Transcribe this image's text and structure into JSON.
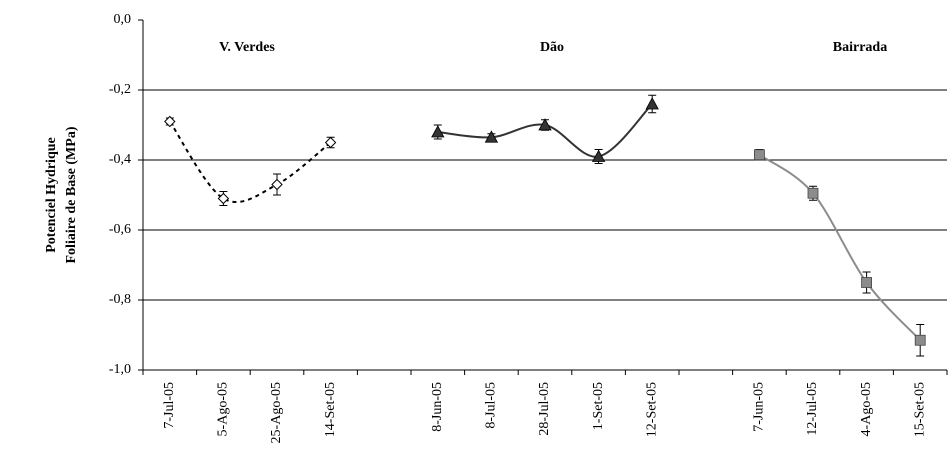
{
  "chart_data": {
    "type": "line",
    "y_label": [
      "Potenciel Hydrique",
      "Foliaire de Base (MPa)"
    ],
    "annotations": [
      "V. Verdes",
      "Dão",
      "Bairrada"
    ],
    "categories": [
      "7-Jul-05",
      "5-Ago-05",
      "25-Ago-05",
      "14-Set-05",
      null,
      "8-Jun-05",
      "8-Jul-05",
      "28-Jul-05",
      "1-Set-05",
      "12-Set-05",
      null,
      "7-Jun-05",
      "12-Jul-05",
      "4-Ago-05",
      "15-Set-05"
    ],
    "series": [
      {
        "name": "V. Verdes",
        "color": "#000000",
        "marker": "diamond",
        "dashed": true,
        "values": [
          -0.29,
          -0.51,
          -0.47,
          -0.35,
          null,
          null,
          null,
          null,
          null,
          null,
          null,
          null,
          null,
          null,
          null
        ],
        "errors": [
          0.01,
          0.02,
          0.03,
          0.015,
          null,
          null,
          null,
          null,
          null,
          null,
          null,
          null,
          null,
          null,
          null
        ]
      },
      {
        "name": "Dão",
        "color": "#333333",
        "marker": "triangle",
        "dashed": false,
        "values": [
          null,
          null,
          null,
          null,
          null,
          -0.32,
          -0.335,
          -0.3,
          -0.39,
          -0.24,
          null,
          null,
          null,
          null,
          null
        ],
        "errors": [
          null,
          null,
          null,
          null,
          null,
          0.02,
          0.01,
          0.015,
          0.02,
          0.025,
          null,
          null,
          null,
          null,
          null
        ]
      },
      {
        "name": "Bairrada",
        "color": "#8c8c8c",
        "marker": "square",
        "dashed": false,
        "values": [
          null,
          null,
          null,
          null,
          null,
          null,
          null,
          null,
          null,
          null,
          null,
          -0.385,
          -0.495,
          -0.75,
          -0.915
        ],
        "errors": [
          null,
          null,
          null,
          null,
          null,
          null,
          null,
          null,
          null,
          null,
          null,
          0.015,
          0.02,
          0.03,
          0.045
        ]
      }
    ],
    "ylim": [
      -1.0,
      0.0
    ],
    "yticks": [
      {
        "value": 0.0,
        "label": "0,0"
      },
      {
        "value": -0.2,
        "label": "-0,2"
      },
      {
        "value": -0.4,
        "label": "-0,4"
      },
      {
        "value": -0.6,
        "label": "-0,6"
      },
      {
        "value": -0.8,
        "label": "-0,8"
      },
      {
        "value": -1.0,
        "label": "-1,0"
      }
    ],
    "grid": true
  }
}
